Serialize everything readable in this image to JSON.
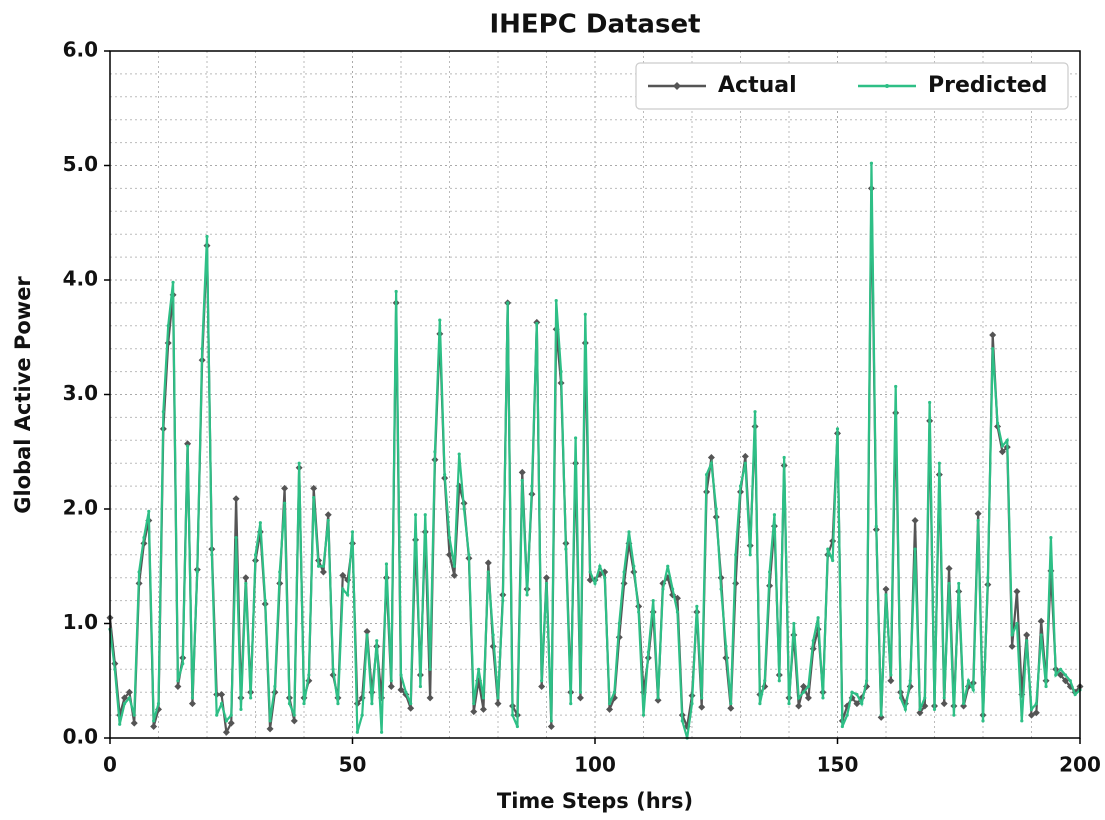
{
  "chart_data": {
    "type": "line",
    "title": "IHEPC Dataset",
    "x_label": "Time Steps (hrs)",
    "y_label": "Global Active Power",
    "x": [
      0,
      1,
      2,
      3,
      4,
      5,
      6,
      7,
      8,
      9,
      10,
      11,
      12,
      13,
      14,
      15,
      16,
      17,
      18,
      19,
      20,
      21,
      22,
      23,
      24,
      25,
      26,
      27,
      28,
      29,
      30,
      31,
      32,
      33,
      34,
      35,
      36,
      37,
      38,
      39,
      40,
      41,
      42,
      43,
      44,
      45,
      46,
      47,
      48,
      49,
      50,
      51,
      52,
      53,
      54,
      55,
      56,
      57,
      58,
      59,
      60,
      61,
      62,
      63,
      64,
      65,
      66,
      67,
      68,
      69,
      70,
      71,
      72,
      73,
      74,
      75,
      76,
      77,
      78,
      79,
      80,
      81,
      82,
      83,
      84,
      85,
      86,
      87,
      88,
      89,
      90,
      91,
      92,
      93,
      94,
      95,
      96,
      97,
      98,
      99,
      100,
      101,
      102,
      103,
      104,
      105,
      106,
      107,
      108,
      109,
      110,
      111,
      112,
      113,
      114,
      115,
      116,
      117,
      118,
      119,
      120,
      121,
      122,
      123,
      124,
      125,
      126,
      127,
      128,
      129,
      130,
      131,
      132,
      133,
      134,
      135,
      136,
      137,
      138,
      139,
      140,
      141,
      142,
      143,
      144,
      145,
      146,
      147,
      148,
      149,
      150,
      151,
      152,
      153,
      154,
      155,
      156,
      157,
      158,
      159,
      160,
      161,
      162,
      163,
      164,
      165,
      166,
      167,
      168,
      169,
      170,
      171,
      172,
      173,
      174,
      175,
      176,
      177,
      178,
      179,
      180,
      181,
      182,
      183,
      184,
      185,
      186,
      187,
      188,
      189,
      190,
      191,
      192,
      193,
      194,
      195,
      196,
      197,
      198,
      199,
      200
    ],
    "series": [
      {
        "name": "Actual",
        "color": "#555555",
        "marker": "diamond",
        "values": [
          1.05,
          0.65,
          0.2,
          0.35,
          0.4,
          0.13,
          1.35,
          1.7,
          1.9,
          0.1,
          0.25,
          2.7,
          3.45,
          3.87,
          0.45,
          0.7,
          2.57,
          0.3,
          1.47,
          3.3,
          4.3,
          1.65,
          0.38,
          0.38,
          0.05,
          0.13,
          2.09,
          0.35,
          1.4,
          0.4,
          1.55,
          1.8,
          1.17,
          0.08,
          0.4,
          1.35,
          2.18,
          0.35,
          0.15,
          2.36,
          0.35,
          0.5,
          2.18,
          1.55,
          1.45,
          1.95,
          0.55,
          0.35,
          1.42,
          1.38,
          1.7,
          0.3,
          0.35,
          0.93,
          0.4,
          0.8,
          0.35,
          1.4,
          0.45,
          3.8,
          0.42,
          0.38,
          0.26,
          1.73,
          0.55,
          1.8,
          0.35,
          2.43,
          3.53,
          2.27,
          1.6,
          1.42,
          2.2,
          2.05,
          1.57,
          0.23,
          0.5,
          0.25,
          1.53,
          0.8,
          0.3,
          1.25,
          3.8,
          0.28,
          0.2,
          2.32,
          1.3,
          2.13,
          3.63,
          0.45,
          1.4,
          0.1,
          3.57,
          3.1,
          1.7,
          0.4,
          2.4,
          0.35,
          3.45,
          1.38,
          1.38,
          1.43,
          1.45,
          0.25,
          0.35,
          0.88,
          1.35,
          1.7,
          1.45,
          1.15,
          0.4,
          0.7,
          1.1,
          0.33,
          1.35,
          1.4,
          1.25,
          1.22,
          0.2,
          0.1,
          0.37,
          1.1,
          0.27,
          2.15,
          2.45,
          1.93,
          1.4,
          0.7,
          0.26,
          1.35,
          2.15,
          2.46,
          1.68,
          2.72,
          0.38,
          0.45,
          1.33,
          1.85,
          0.55,
          2.38,
          0.35,
          0.9,
          0.28,
          0.45,
          0.35,
          0.78,
          0.95,
          0.4,
          1.6,
          1.72,
          2.66,
          0.15,
          0.28,
          0.35,
          0.3,
          0.35,
          0.45,
          4.8,
          1.82,
          0.18,
          1.3,
          0.5,
          2.84,
          0.4,
          0.3,
          0.45,
          1.9,
          0.22,
          0.28,
          2.77,
          0.28,
          2.3,
          0.3,
          1.48,
          0.28,
          1.28,
          0.28,
          0.45,
          0.48,
          1.96,
          0.2,
          1.34,
          3.52,
          2.72,
          2.5,
          2.54,
          0.8,
          1.28,
          0.38,
          0.9,
          0.2,
          0.22,
          1.02,
          0.5,
          1.46,
          0.6,
          0.55,
          0.5,
          0.45,
          0.4,
          0.45
        ]
      },
      {
        "name": "Predicted",
        "color": "#2ebf86",
        "marker": "dot",
        "values": [
          0.95,
          0.6,
          0.12,
          0.3,
          0.35,
          0.2,
          1.45,
          1.75,
          1.98,
          0.15,
          0.3,
          2.85,
          3.6,
          3.98,
          0.5,
          0.65,
          2.55,
          0.35,
          1.45,
          3.4,
          4.38,
          1.6,
          0.2,
          0.3,
          0.15,
          0.2,
          1.75,
          0.25,
          1.35,
          0.35,
          1.6,
          1.88,
          1.2,
          0.15,
          0.45,
          1.45,
          2.05,
          0.3,
          0.2,
          2.4,
          0.3,
          0.55,
          2.1,
          1.5,
          1.5,
          1.9,
          0.6,
          0.3,
          1.3,
          1.25,
          1.8,
          0.05,
          0.2,
          0.9,
          0.3,
          0.85,
          0.05,
          1.52,
          0.5,
          3.9,
          0.55,
          0.4,
          0.3,
          1.95,
          0.45,
          1.95,
          0.6,
          2.5,
          3.65,
          2.3,
          1.75,
          1.5,
          2.48,
          2.0,
          1.6,
          0.3,
          0.6,
          0.35,
          1.45,
          0.9,
          0.35,
          1.2,
          3.8,
          0.2,
          0.1,
          2.25,
          1.25,
          2.2,
          3.62,
          0.5,
          1.35,
          0.15,
          3.82,
          3.2,
          1.65,
          0.3,
          2.62,
          0.4,
          3.7,
          1.45,
          1.35,
          1.5,
          1.4,
          0.3,
          0.4,
          1.0,
          1.45,
          1.8,
          1.5,
          1.1,
          0.2,
          0.75,
          1.2,
          0.35,
          1.3,
          1.5,
          1.3,
          1.1,
          0.15,
          0.0,
          0.3,
          1.15,
          0.35,
          2.3,
          2.4,
          2.0,
          1.3,
          0.8,
          0.3,
          1.6,
          2.2,
          2.4,
          1.6,
          2.85,
          0.3,
          0.5,
          1.45,
          1.95,
          0.5,
          2.45,
          0.3,
          1.0,
          0.35,
          0.4,
          0.45,
          0.85,
          1.05,
          0.35,
          1.65,
          1.55,
          2.7,
          0.1,
          0.2,
          0.4,
          0.38,
          0.3,
          0.5,
          5.02,
          1.85,
          0.2,
          1.25,
          0.55,
          3.07,
          0.35,
          0.25,
          0.5,
          1.65,
          0.25,
          0.35,
          2.93,
          0.25,
          2.4,
          0.35,
          1.35,
          0.2,
          1.35,
          0.3,
          0.5,
          0.42,
          1.9,
          0.15,
          1.4,
          3.4,
          2.75,
          2.55,
          2.6,
          0.9,
          1.0,
          0.15,
          0.85,
          0.25,
          0.3,
          0.9,
          0.45,
          1.75,
          0.55,
          0.6,
          0.55,
          0.5,
          0.38,
          0.42
        ]
      }
    ],
    "xlim": [
      0,
      200
    ],
    "ylim": [
      0,
      6
    ],
    "xticks": [
      0,
      50,
      100,
      150,
      200
    ],
    "yticks": [
      {
        "value": 0,
        "label": "0.0"
      },
      {
        "value": 1,
        "label": "1.0"
      },
      {
        "value": 2,
        "label": "2.0"
      },
      {
        "value": 3,
        "label": "3.0"
      },
      {
        "value": 4,
        "label": "4.0"
      },
      {
        "value": 5,
        "label": "5.0"
      },
      {
        "value": 6,
        "label": "6.0"
      }
    ],
    "xminorticks": [
      10,
      20,
      30,
      40,
      60,
      70,
      80,
      90,
      110,
      120,
      130,
      140,
      160,
      170,
      180,
      190
    ],
    "yminorticks": [
      0.2,
      0.4,
      0.6,
      0.8,
      1.2,
      1.4,
      1.6,
      1.8,
      2.2,
      2.4,
      2.6,
      2.8,
      3.2,
      3.4,
      3.6,
      3.8,
      4.2,
      4.4,
      4.6,
      4.8,
      5.2,
      5.4,
      5.6,
      5.8
    ],
    "grid": true,
    "legend": "upper right"
  }
}
